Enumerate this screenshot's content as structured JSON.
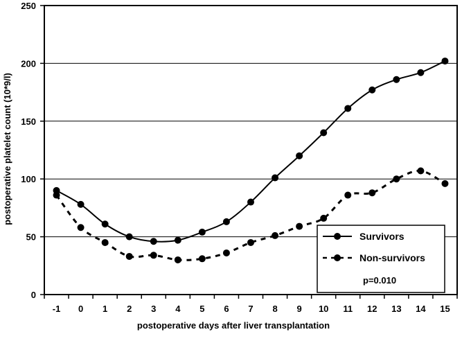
{
  "chart_data": {
    "type": "line",
    "title": "",
    "xlabel": "postoperative days after liver transplantation",
    "ylabel": "postoperative platelet count (10*9/l)",
    "x": [
      -1,
      0,
      1,
      2,
      3,
      4,
      5,
      6,
      7,
      8,
      9,
      10,
      11,
      12,
      13,
      14,
      15
    ],
    "xlim": [
      -1,
      15
    ],
    "ylim": [
      0,
      250
    ],
    "yticks": [
      0,
      50,
      100,
      150,
      200,
      250
    ],
    "grid": "horizontal",
    "legend_position": "lower-right",
    "annotation": "p=0.010",
    "series": [
      {
        "name": "Survivors",
        "style": "solid",
        "color": "#000000",
        "values": [
          90,
          78,
          61,
          50,
          46,
          47,
          54,
          63,
          80,
          101,
          120,
          140,
          161,
          177,
          186,
          192,
          202
        ]
      },
      {
        "name": "Non-survivors",
        "style": "dashed",
        "color": "#000000",
        "values": [
          86,
          58,
          45,
          33,
          34,
          30,
          31,
          36,
          45,
          51,
          59,
          66,
          86,
          88,
          100,
          107,
          96
        ]
      }
    ]
  }
}
